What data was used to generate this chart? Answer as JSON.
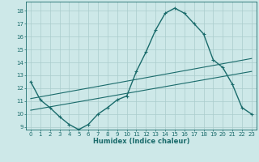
{
  "xlabel": "Humidex (Indice chaleur)",
  "xlim": [
    -0.5,
    23.5
  ],
  "ylim": [
    8.8,
    18.7
  ],
  "yticks": [
    9,
    10,
    11,
    12,
    13,
    14,
    15,
    16,
    17,
    18
  ],
  "xticks": [
    0,
    1,
    2,
    3,
    4,
    5,
    6,
    7,
    8,
    9,
    10,
    11,
    12,
    13,
    14,
    15,
    16,
    17,
    18,
    19,
    20,
    21,
    22,
    23
  ],
  "background_color": "#cde8e8",
  "grid_color": "#aacccc",
  "line_color": "#1a6b6b",
  "line1_x": [
    0,
    1,
    2,
    3,
    4,
    5,
    6,
    7,
    8,
    9,
    10,
    11,
    12,
    13,
    14,
    15,
    16,
    17,
    18,
    19,
    20,
    21,
    22,
    23
  ],
  "line1_y": [
    12.5,
    11.1,
    10.5,
    9.8,
    9.2,
    8.8,
    9.2,
    10.0,
    10.5,
    11.1,
    11.4,
    13.3,
    14.8,
    16.5,
    17.8,
    18.2,
    17.8,
    17.0,
    16.2,
    14.2,
    13.6,
    12.3,
    10.5,
    10.0
  ],
  "line2_x": [
    0,
    23
  ],
  "line2_y": [
    11.2,
    14.3
  ],
  "line3_x": [
    0,
    23
  ],
  "line3_y": [
    10.3,
    13.3
  ],
  "xlabel_fontsize": 6.0,
  "tick_fontsize": 5.0,
  "linewidth_main": 1.0,
  "linewidth_trend": 0.8,
  "marker_size": 3.0
}
